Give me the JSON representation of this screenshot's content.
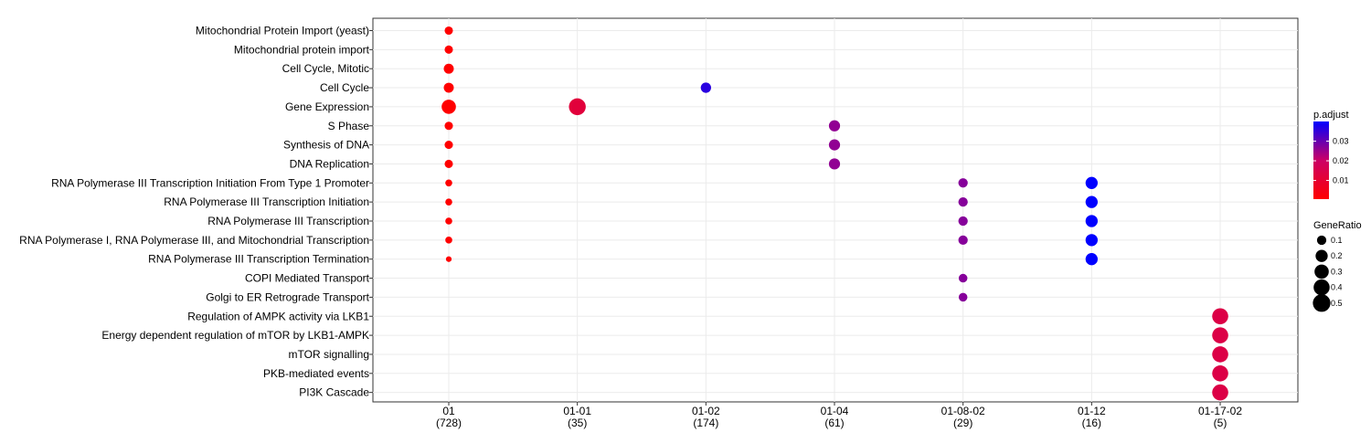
{
  "chart_data": {
    "type": "scatter",
    "subtype": "dotplot",
    "categories_x": [
      "01",
      "01-01",
      "01-02",
      "01-04",
      "01-08-02",
      "01-12",
      "01-17-02"
    ],
    "x_counts": [
      "(728)",
      "(35)",
      "(174)",
      "(61)",
      "(29)",
      "(16)",
      "(5)"
    ],
    "categories_y": [
      "Mitochondrial Protein Import (yeast)",
      "Mitochondrial protein import",
      "Cell Cycle, Mitotic",
      "Cell Cycle",
      "Gene Expression",
      "S Phase",
      "Synthesis of DNA",
      "DNA Replication",
      "RNA Polymerase III Transcription Initiation From Type 1 Promoter",
      "RNA Polymerase III Transcription Initiation",
      "RNA Polymerase III Transcription",
      "RNA Polymerase I, RNA Polymerase III, and Mitochondrial Transcription",
      "RNA Polymerase III Transcription Termination",
      "COPI Mediated Transport",
      "Golgi to ER Retrograde Transport",
      "Regulation of AMPK activity via LKB1",
      "Energy dependent regulation of mTOR by LKB1-AMPK",
      "mTOR signalling",
      "PKB-mediated events",
      "PI3K Cascade"
    ],
    "points": [
      {
        "x": "01",
        "y": "Mitochondrial Protein Import (yeast)",
        "gene_ratio": 0.07,
        "p_adjust": 0.0005
      },
      {
        "x": "01",
        "y": "Mitochondrial protein import",
        "gene_ratio": 0.07,
        "p_adjust": 0.0005
      },
      {
        "x": "01",
        "y": "Cell Cycle, Mitotic",
        "gene_ratio": 0.12,
        "p_adjust": 0.0005
      },
      {
        "x": "01",
        "y": "Cell Cycle",
        "gene_ratio": 0.12,
        "p_adjust": 0.0005
      },
      {
        "x": "01",
        "y": "Gene Expression",
        "gene_ratio": 0.3,
        "p_adjust": 0.0005
      },
      {
        "x": "01",
        "y": "S Phase",
        "gene_ratio": 0.07,
        "p_adjust": 0.0005
      },
      {
        "x": "01",
        "y": "Synthesis of DNA",
        "gene_ratio": 0.07,
        "p_adjust": 0.0005
      },
      {
        "x": "01",
        "y": "DNA Replication",
        "gene_ratio": 0.07,
        "p_adjust": 0.0005
      },
      {
        "x": "01",
        "y": "RNA Polymerase III Transcription Initiation From Type 1 Promoter",
        "gene_ratio": 0.04,
        "p_adjust": 0.0005
      },
      {
        "x": "01",
        "y": "RNA Polymerase III Transcription Initiation",
        "gene_ratio": 0.04,
        "p_adjust": 0.0005
      },
      {
        "x": "01",
        "y": "RNA Polymerase III Transcription",
        "gene_ratio": 0.04,
        "p_adjust": 0.0005
      },
      {
        "x": "01",
        "y": "RNA Polymerase I, RNA Polymerase III, and Mitochondrial Transcription",
        "gene_ratio": 0.04,
        "p_adjust": 0.0005
      },
      {
        "x": "01",
        "y": "RNA Polymerase III Transcription Termination",
        "gene_ratio": 0.02,
        "p_adjust": 0.0005
      },
      {
        "x": "01-01",
        "y": "Gene Expression",
        "gene_ratio": 0.45,
        "p_adjust": 0.012
      },
      {
        "x": "01-02",
        "y": "Cell Cycle",
        "gene_ratio": 0.13,
        "p_adjust": 0.036
      },
      {
        "x": "01-04",
        "y": "S Phase",
        "gene_ratio": 0.16,
        "p_adjust": 0.026
      },
      {
        "x": "01-04",
        "y": "Synthesis of DNA",
        "gene_ratio": 0.16,
        "p_adjust": 0.026
      },
      {
        "x": "01-04",
        "y": "DNA Replication",
        "gene_ratio": 0.16,
        "p_adjust": 0.026
      },
      {
        "x": "01-08-02",
        "y": "RNA Polymerase III Transcription Initiation From Type 1 Promoter",
        "gene_ratio": 0.1,
        "p_adjust": 0.027
      },
      {
        "x": "01-08-02",
        "y": "RNA Polymerase III Transcription Initiation",
        "gene_ratio": 0.1,
        "p_adjust": 0.027
      },
      {
        "x": "01-08-02",
        "y": "RNA Polymerase III Transcription",
        "gene_ratio": 0.1,
        "p_adjust": 0.027
      },
      {
        "x": "01-08-02",
        "y": "RNA Polymerase I, RNA Polymerase III, and Mitochondrial Transcription",
        "gene_ratio": 0.1,
        "p_adjust": 0.027
      },
      {
        "x": "01-08-02",
        "y": "COPI Mediated Transport",
        "gene_ratio": 0.08,
        "p_adjust": 0.027
      },
      {
        "x": "01-08-02",
        "y": "Golgi to ER Retrograde Transport",
        "gene_ratio": 0.08,
        "p_adjust": 0.027
      },
      {
        "x": "01-12",
        "y": "RNA Polymerase III Transcription Initiation From Type 1 Promoter",
        "gene_ratio": 0.2,
        "p_adjust": 0.04
      },
      {
        "x": "01-12",
        "y": "RNA Polymerase III Transcription Initiation",
        "gene_ratio": 0.2,
        "p_adjust": 0.04
      },
      {
        "x": "01-12",
        "y": "RNA Polymerase III Transcription",
        "gene_ratio": 0.2,
        "p_adjust": 0.04
      },
      {
        "x": "01-12",
        "y": "RNA Polymerase I, RNA Polymerase III, and Mitochondrial Transcription",
        "gene_ratio": 0.2,
        "p_adjust": 0.04
      },
      {
        "x": "01-12",
        "y": "RNA Polymerase III Transcription Termination",
        "gene_ratio": 0.2,
        "p_adjust": 0.04
      },
      {
        "x": "01-17-02",
        "y": "Regulation of AMPK activity via LKB1",
        "gene_ratio": 0.4,
        "p_adjust": 0.014
      },
      {
        "x": "01-17-02",
        "y": "Energy dependent regulation of mTOR by LKB1-AMPK",
        "gene_ratio": 0.4,
        "p_adjust": 0.014
      },
      {
        "x": "01-17-02",
        "y": "mTOR signalling",
        "gene_ratio": 0.4,
        "p_adjust": 0.014
      },
      {
        "x": "01-17-02",
        "y": "PKB-mediated events",
        "gene_ratio": 0.4,
        "p_adjust": 0.014
      },
      {
        "x": "01-17-02",
        "y": "PI3K Cascade",
        "gene_ratio": 0.4,
        "p_adjust": 0.014
      }
    ],
    "color_legend": {
      "title": "p.adjust",
      "ticks": [
        0.01,
        0.02,
        0.03
      ],
      "tick_labels": [
        "0.01",
        "0.02",
        "0.03"
      ],
      "range": [
        0.0005,
        0.04
      ],
      "low_color": "#ff0000",
      "mid_color": "#cc0066",
      "high_color": "#0000ff"
    },
    "size_legend": {
      "title": "GeneRatio",
      "values": [
        0.1,
        0.2,
        0.3,
        0.4,
        0.5
      ],
      "labels": [
        "0.1",
        "0.2",
        "0.3",
        "0.4",
        "0.5"
      ],
      "color": "#000000"
    },
    "grid": true,
    "legend_position": "right"
  }
}
